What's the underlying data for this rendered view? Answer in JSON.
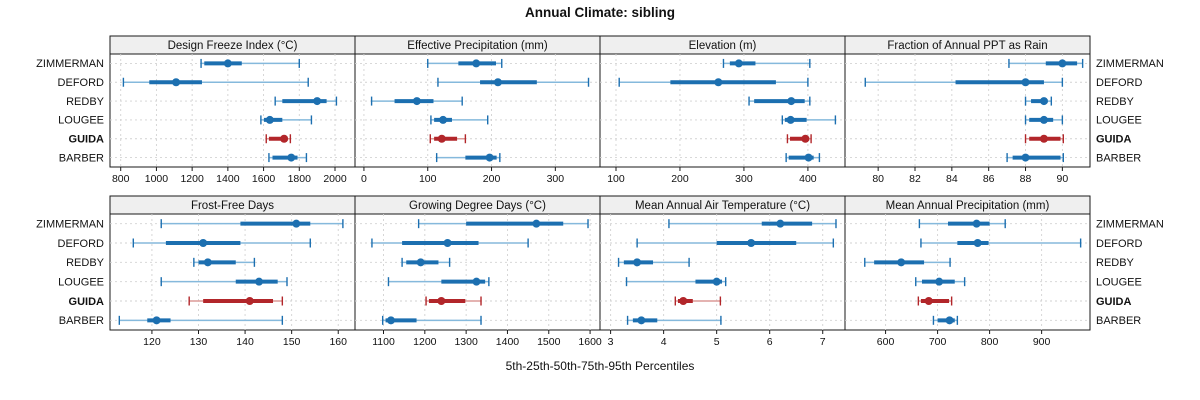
{
  "title": "Annual Climate: sibling",
  "xlabel": "5th-25th-50th-75th-95th Percentiles",
  "colors": {
    "blue_dark": "#1c6fb0",
    "blue_light": "#85b9dc",
    "red_dark": "#b2262a",
    "red_light": "#dc9a97",
    "header_bg": "#efefef",
    "panel_border": "#1a1a1a",
    "grid": "#d2d2d2"
  },
  "chart_data": {
    "type": "scatter",
    "subtype": "percentile-interval-dotplot",
    "title": "Annual Climate: sibling",
    "xlabel": "5th-25th-50th-75th-95th Percentiles",
    "percentile_labels": [
      "5th",
      "25th",
      "50th",
      "75th",
      "95th"
    ],
    "grid": "dashed",
    "legend": "none",
    "stations": [
      {
        "name": "ZIMMERMAN",
        "highlight": false
      },
      {
        "name": "DEFORD",
        "highlight": false
      },
      {
        "name": "REDBY",
        "highlight": false
      },
      {
        "name": "LOUGEE",
        "highlight": false
      },
      {
        "name": "GUIDA",
        "highlight": true
      },
      {
        "name": "BARBER",
        "highlight": false
      }
    ],
    "panels": [
      {
        "id": "design-freeze-index",
        "title": "Design Freeze Index (°C)",
        "row": 0,
        "col": 0,
        "domain": [
          740,
          2112
        ],
        "ticks": [
          800,
          1000,
          1200,
          1400,
          1600,
          1800,
          2000
        ],
        "values": [
          [
            1250,
            1268,
            1400,
            1478,
            1800
          ],
          [
            815,
            960,
            1110,
            1255,
            1850
          ],
          [
            1665,
            1705,
            1900,
            1953,
            2008
          ],
          [
            1585,
            1602,
            1635,
            1705,
            1868
          ],
          [
            1615,
            1630,
            1715,
            1735,
            1750
          ],
          [
            1630,
            1650,
            1755,
            1790,
            1840
          ]
        ]
      },
      {
        "id": "effective-precipitation",
        "title": "Effective Precipitation (mm)",
        "row": 0,
        "col": 1,
        "domain": [
          -14,
          370
        ],
        "ticks": [
          0,
          100,
          200,
          300
        ],
        "values": [
          [
            100,
            148,
            176,
            207,
            216
          ],
          [
            116,
            182,
            210,
            271,
            352
          ],
          [
            12,
            48,
            83,
            109,
            154
          ],
          [
            105,
            110,
            124,
            138,
            194
          ],
          [
            104,
            110,
            122,
            146,
            159
          ],
          [
            114,
            159,
            197,
            208,
            213
          ]
        ]
      },
      {
        "id": "elevation",
        "title": "Elevation (m)",
        "row": 0,
        "col": 2,
        "domain": [
          75,
          458
        ],
        "ticks": [
          100,
          200,
          300,
          400
        ],
        "values": [
          [
            268,
            278,
            292,
            318,
            403
          ],
          [
            105,
            185,
            260,
            350,
            400
          ],
          [
            308,
            316,
            374,
            395,
            403
          ],
          [
            360,
            364,
            373,
            398,
            443
          ],
          [
            368,
            372,
            396,
            402,
            405
          ],
          [
            366,
            370,
            401,
            409,
            418
          ]
        ]
      },
      {
        "id": "fraction-annual-ppt-rain",
        "title": "Fraction of Annual PPT as Rain",
        "row": 0,
        "col": 3,
        "domain": [
          78.2,
          91.5
        ],
        "ticks": [
          80,
          82,
          84,
          86,
          88,
          90
        ],
        "values": [
          [
            87.1,
            89.1,
            90.0,
            90.8,
            91.1
          ],
          [
            79.3,
            84.2,
            88.0,
            89.0,
            90.0
          ],
          [
            88.0,
            88.3,
            89.0,
            89.2,
            89.4
          ],
          [
            88.0,
            88.2,
            89.0,
            89.5,
            90.0
          ],
          [
            88.0,
            88.2,
            89.0,
            89.9,
            90.05
          ],
          [
            87.0,
            87.3,
            88.0,
            89.9,
            90.05
          ]
        ]
      },
      {
        "id": "frost-free-days",
        "title": "Frost-Free Days",
        "row": 1,
        "col": 0,
        "domain": [
          111,
          163.6
        ],
        "ticks": [
          120,
          130,
          140,
          150,
          160
        ],
        "values": [
          [
            122,
            139,
            151,
            154,
            161
          ],
          [
            116,
            123,
            131,
            139,
            154
          ],
          [
            129,
            130,
            132,
            138,
            142
          ],
          [
            122,
            138,
            143,
            147,
            149
          ],
          [
            128,
            131,
            141,
            146,
            148
          ],
          [
            113,
            119,
            121,
            124,
            148
          ]
        ]
      },
      {
        "id": "growing-degree-days",
        "title": "Growing Degree Days (°C)",
        "row": 1,
        "col": 1,
        "domain": [
          1031,
          1624
        ],
        "ticks": [
          1100,
          1200,
          1300,
          1400,
          1500,
          1600
        ],
        "values": [
          [
            1185,
            1300,
            1470,
            1535,
            1595
          ],
          [
            1072,
            1145,
            1255,
            1330,
            1450
          ],
          [
            1145,
            1155,
            1190,
            1233,
            1260
          ],
          [
            1112,
            1240,
            1325,
            1346,
            1355
          ],
          [
            1203,
            1210,
            1240,
            1298,
            1336
          ],
          [
            1098,
            1105,
            1118,
            1180,
            1336
          ]
        ]
      },
      {
        "id": "mean-annual-air-temperature",
        "title": "Mean Annual Air Temperature (°C)",
        "row": 1,
        "col": 2,
        "domain": [
          2.8,
          7.42
        ],
        "ticks": [
          3,
          4,
          5,
          6,
          7
        ],
        "values": [
          [
            4.1,
            5.85,
            6.2,
            6.8,
            7.25
          ],
          [
            3.5,
            5.0,
            5.65,
            6.5,
            7.2
          ],
          [
            3.15,
            3.25,
            3.5,
            3.8,
            4.48
          ],
          [
            3.3,
            4.6,
            5.0,
            5.1,
            5.17
          ],
          [
            4.22,
            4.27,
            4.37,
            4.55,
            5.07
          ],
          [
            3.32,
            3.42,
            3.58,
            3.88,
            5.08
          ]
        ]
      },
      {
        "id": "mean-annual-precipitation",
        "title": "Mean Annual Precipitation (mm)",
        "row": 1,
        "col": 3,
        "domain": [
          522,
          993
        ],
        "ticks": [
          600,
          700,
          800,
          900
        ],
        "values": [
          [
            665,
            720,
            775,
            800,
            830
          ],
          [
            668,
            738,
            777,
            798,
            975
          ],
          [
            560,
            578,
            630,
            674,
            724
          ],
          [
            658,
            670,
            703,
            733,
            752
          ],
          [
            663,
            668,
            683,
            722,
            727
          ],
          [
            692,
            700,
            723,
            733,
            738
          ]
        ]
      }
    ]
  }
}
